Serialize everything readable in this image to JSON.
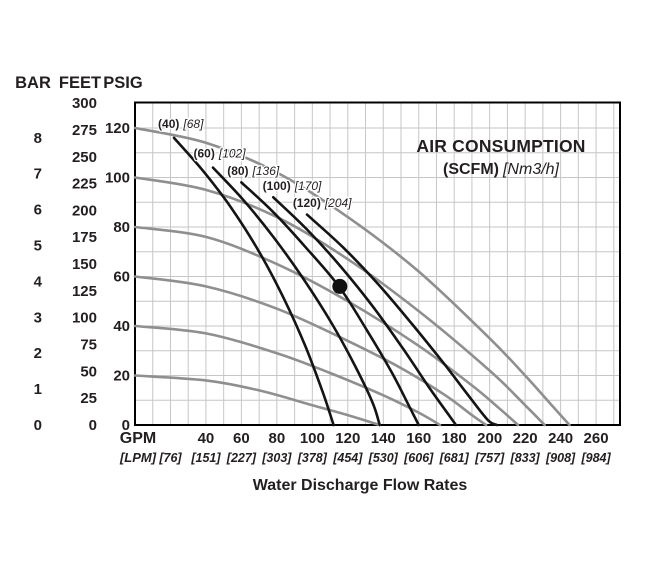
{
  "chart_data": {
    "type": "line",
    "title": "AIR CONSUMPTION",
    "subtitle_bold": "(SCFM)",
    "subtitle_italic": "[Nm3/h]",
    "xlabel": "Water Discharge Flow Rates",
    "x_axis": {
      "unit_primary": "GPM",
      "unit_secondary": "[LPM]",
      "gpm_range": [
        0,
        273.5
      ],
      "grid_step_gpm": 10,
      "gpm_ticks": [
        40,
        60,
        80,
        100,
        120,
        140,
        160,
        180,
        200,
        220,
        240,
        260
      ],
      "lpm_ticks": [
        {
          "gpm": 20,
          "label": "[76]"
        },
        {
          "gpm": 40,
          "label": "[151]"
        },
        {
          "gpm": 60,
          "label": "[227]"
        },
        {
          "gpm": 80,
          "label": "[303]"
        },
        {
          "gpm": 100,
          "label": "[378]"
        },
        {
          "gpm": 120,
          "label": "[454]"
        },
        {
          "gpm": 140,
          "label": "[530]"
        },
        {
          "gpm": 160,
          "label": "[606]"
        },
        {
          "gpm": 180,
          "label": "[681]"
        },
        {
          "gpm": 200,
          "label": "[757]"
        },
        {
          "gpm": 220,
          "label": "[833]"
        },
        {
          "gpm": 240,
          "label": "[908]"
        },
        {
          "gpm": 260,
          "label": "[984]"
        }
      ]
    },
    "y_axes": [
      {
        "name": "BAR",
        "ticks": [
          8,
          7,
          6,
          5,
          4,
          3,
          2,
          1,
          0
        ],
        "psi_per_unit": 14.504
      },
      {
        "name": "FEET",
        "ticks": [
          300,
          275,
          250,
          225,
          200,
          175,
          150,
          125,
          100,
          75,
          50,
          25,
          0
        ],
        "psi_per_unit": 0.4335
      },
      {
        "name": "PSIG",
        "ticks": [
          120,
          100,
          80,
          60,
          40,
          20,
          0
        ],
        "psi_per_unit": 1
      }
    ],
    "psi_range": [
      0,
      130
    ],
    "grid_step_psi": 10,
    "pressure_curves_gray": [
      {
        "psig": 120,
        "points": [
          [
            0,
            120
          ],
          [
            40,
            114
          ],
          [
            80,
            102
          ],
          [
            120,
            84
          ],
          [
            160,
            62
          ],
          [
            200,
            35
          ],
          [
            220,
            20
          ],
          [
            235,
            8
          ],
          [
            245,
            0
          ]
        ]
      },
      {
        "psig": 100,
        "points": [
          [
            0,
            100
          ],
          [
            40,
            95
          ],
          [
            80,
            84
          ],
          [
            120,
            67
          ],
          [
            160,
            46
          ],
          [
            200,
            22
          ],
          [
            220,
            8
          ],
          [
            231,
            0
          ]
        ]
      },
      {
        "psig": 80,
        "points": [
          [
            0,
            80
          ],
          [
            40,
            76
          ],
          [
            80,
            65
          ],
          [
            120,
            50
          ],
          [
            160,
            32
          ],
          [
            190,
            16
          ],
          [
            205,
            7
          ],
          [
            216,
            0
          ]
        ]
      },
      {
        "psig": 60,
        "points": [
          [
            0,
            60
          ],
          [
            40,
            56
          ],
          [
            80,
            47
          ],
          [
            120,
            34
          ],
          [
            150,
            23
          ],
          [
            175,
            12
          ],
          [
            190,
            4
          ],
          [
            198,
            0
          ]
        ]
      },
      {
        "psig": 40,
        "points": [
          [
            0,
            40
          ],
          [
            40,
            37
          ],
          [
            80,
            29
          ],
          [
            110,
            21
          ],
          [
            140,
            12
          ],
          [
            160,
            5
          ],
          [
            172,
            0
          ]
        ]
      },
      {
        "psig": 20,
        "points": [
          [
            0,
            20
          ],
          [
            40,
            18
          ],
          [
            70,
            14
          ],
          [
            100,
            8
          ],
          [
            120,
            4
          ],
          [
            138,
            0
          ]
        ]
      }
    ],
    "air_curves_black": [
      {
        "scfm": 40,
        "label_bold": "(40)",
        "label_italic": "[68]",
        "label_gpm": 13,
        "label_psi": 120,
        "points": [
          [
            22,
            116
          ],
          [
            38,
            103
          ],
          [
            54,
            88
          ],
          [
            70,
            70
          ],
          [
            84,
            51
          ],
          [
            96,
            32
          ],
          [
            106,
            13
          ],
          [
            112,
            0
          ]
        ]
      },
      {
        "scfm": 60,
        "label_bold": "(60)",
        "label_italic": "[102]",
        "label_gpm": 33,
        "label_psi": 108,
        "points": [
          [
            44,
            104
          ],
          [
            61,
            91
          ],
          [
            78,
            76
          ],
          [
            95,
            59
          ],
          [
            111,
            41
          ],
          [
            124,
            24
          ],
          [
            134,
            9
          ],
          [
            138,
            0
          ]
        ]
      },
      {
        "scfm": 80,
        "label_bold": "(80)",
        "label_italic": "[136]",
        "label_gpm": 52,
        "label_psi": 101,
        "points": [
          [
            60,
            98
          ],
          [
            78,
            86
          ],
          [
            96,
            72
          ],
          [
            115,
            56
          ],
          [
            131,
            38
          ],
          [
            145,
            21
          ],
          [
            155,
            7
          ],
          [
            160,
            0
          ]
        ]
      },
      {
        "scfm": 100,
        "label_bold": "(100)",
        "label_italic": "[170]",
        "label_gpm": 72,
        "label_psi": 95,
        "points": [
          [
            78,
            92
          ],
          [
            97,
            79
          ],
          [
            116,
            64
          ],
          [
            134,
            48
          ],
          [
            151,
            31
          ],
          [
            166,
            15
          ],
          [
            177,
            4
          ],
          [
            181,
            0
          ]
        ]
      },
      {
        "scfm": 120,
        "label_bold": "(120)",
        "label_italic": "[204]",
        "label_gpm": 89,
        "label_psi": 88,
        "points": [
          [
            97,
            85
          ],
          [
            117,
            72
          ],
          [
            137,
            57
          ],
          [
            156,
            41
          ],
          [
            174,
            25
          ],
          [
            189,
            11
          ],
          [
            199,
            2
          ],
          [
            204,
            0
          ]
        ]
      }
    ],
    "operating_point": {
      "gpm": 115.5,
      "psi": 56
    },
    "colors": {
      "grid": "#c6c6c6",
      "border": "#000000",
      "gray_curve": "#8f8f8f",
      "black_curve": "#141414",
      "text": "#231f20",
      "marker": "#111111"
    }
  }
}
